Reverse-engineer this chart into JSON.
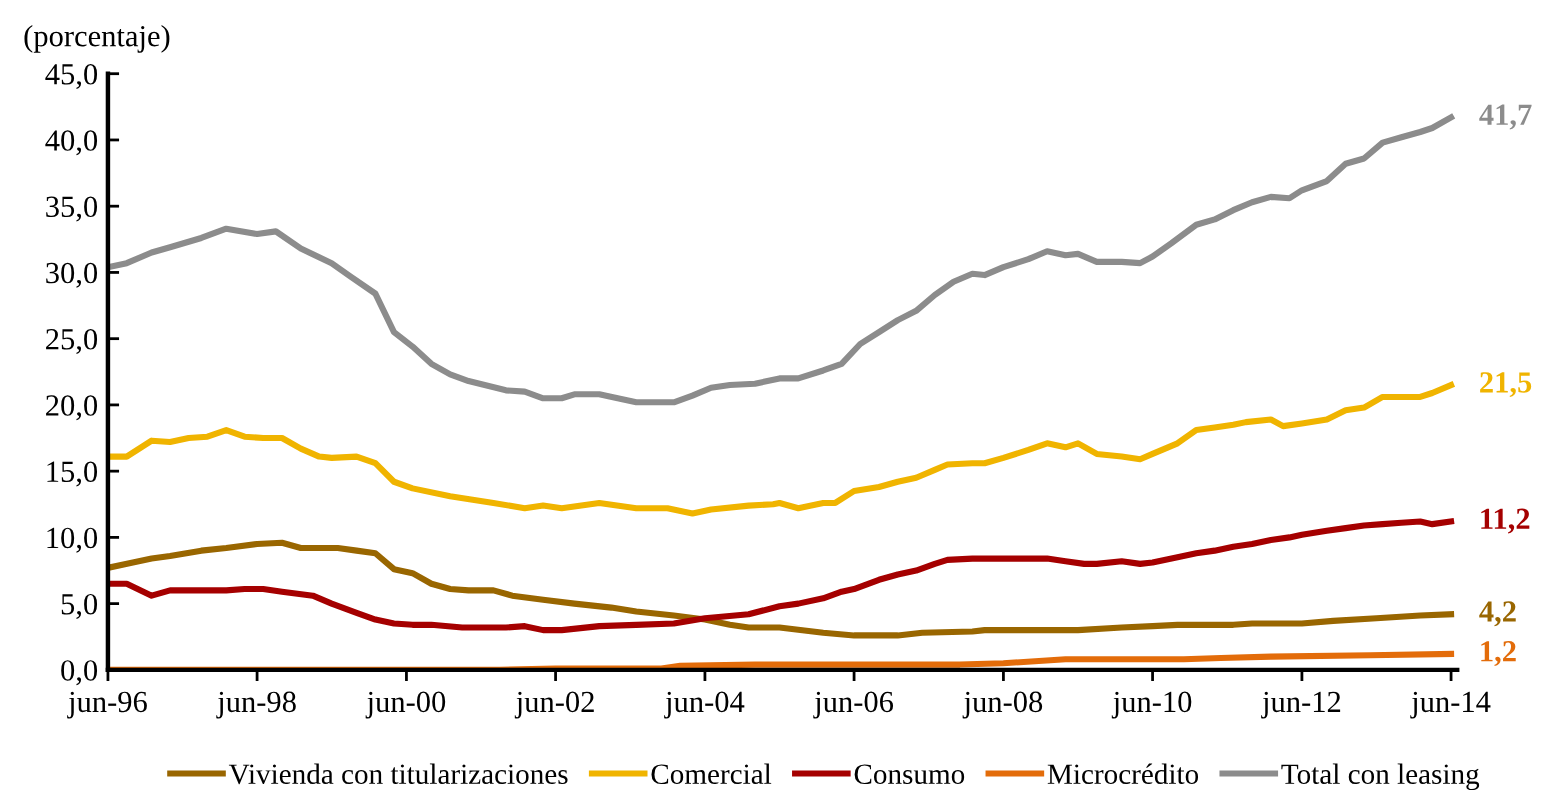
{
  "chart_data": {
    "type": "line",
    "ylabel": "(porcentaje)",
    "xlim": [
      "1996-06",
      "2014-07"
    ],
    "xticks": [
      {
        "value": "1996-06",
        "label": "jun-96"
      },
      {
        "value": "1998-06",
        "label": "jun-98"
      },
      {
        "value": "2000-06",
        "label": "jun-00"
      },
      {
        "value": "2002-06",
        "label": "jun-02"
      },
      {
        "value": "2004-06",
        "label": "jun-04"
      },
      {
        "value": "2006-06",
        "label": "jun-06"
      },
      {
        "value": "2008-06",
        "label": "jun-08"
      },
      {
        "value": "2010-06",
        "label": "jun-10"
      },
      {
        "value": "2012-06",
        "label": "jun-12"
      },
      {
        "value": "2014-06",
        "label": "jun-14"
      }
    ],
    "ylim": [
      0,
      45
    ],
    "yticks": [
      {
        "value": 0,
        "label": "0,0"
      },
      {
        "value": 5,
        "label": "5,0"
      },
      {
        "value": 10,
        "label": "10,0"
      },
      {
        "value": 15,
        "label": "15,0"
      },
      {
        "value": 20,
        "label": "20,0"
      },
      {
        "value": 25,
        "label": "25,0"
      },
      {
        "value": 30,
        "label": "30,0"
      },
      {
        "value": 35,
        "label": "35,0"
      },
      {
        "value": 40,
        "label": "40,0"
      },
      {
        "value": 45,
        "label": "45,0"
      }
    ],
    "legend": "bottom",
    "line_style": "solid",
    "series": [
      {
        "name": "Vivienda con titularizaciones",
        "color": "#996600",
        "x": [
          "1996-06",
          "1996-10",
          "1997-01",
          "1997-04",
          "1997-09",
          "1998-01",
          "1998-06",
          "1998-10",
          "1999-01",
          "1999-04",
          "1999-07",
          "1999-10",
          "2000-01",
          "2000-04",
          "2000-07",
          "2000-10",
          "2001-01",
          "2001-04",
          "2001-08",
          "2001-11",
          "2002-04",
          "2002-09",
          "2003-03",
          "2003-07",
          "2004-01",
          "2004-06",
          "2004-10",
          "2005-01",
          "2005-06",
          "2006-01",
          "2006-06",
          "2007-01",
          "2007-05",
          "2008-01",
          "2008-03",
          "2009-06",
          "2010-01",
          "2010-06",
          "2010-10",
          "2011-07",
          "2011-10",
          "2012-06",
          "2012-11",
          "2013-06",
          "2014-01",
          "2014-06"
        ],
        "values": [
          7.7,
          8.1,
          8.4,
          8.6,
          9.0,
          9.2,
          9.5,
          9.6,
          9.2,
          9.2,
          9.2,
          9.0,
          8.8,
          7.6,
          7.3,
          6.5,
          6.1,
          6.0,
          6.0,
          5.6,
          5.3,
          5.0,
          4.7,
          4.4,
          4.1,
          3.8,
          3.4,
          3.2,
          3.2,
          2.8,
          2.6,
          2.6,
          2.8,
          2.9,
          3.0,
          3.0,
          3.2,
          3.3,
          3.4,
          3.4,
          3.5,
          3.5,
          3.7,
          3.9,
          4.1,
          4.2
        ]
      },
      {
        "name": "Comercial",
        "color": "#f0b400",
        "x": [
          "1996-06",
          "1996-09",
          "1997-01",
          "1997-04",
          "1997-07",
          "1997-10",
          "1998-01",
          "1998-04",
          "1998-07",
          "1998-10",
          "1999-01",
          "1999-04",
          "1999-06",
          "1999-10",
          "2000-01",
          "2000-04",
          "2000-07",
          "2001-01",
          "2001-08",
          "2002-01",
          "2002-04",
          "2002-07",
          "2003-01",
          "2003-07",
          "2003-12",
          "2004-04",
          "2004-07",
          "2005-01",
          "2005-05",
          "2005-06",
          "2005-09",
          "2006-01",
          "2006-03",
          "2006-06",
          "2006-10",
          "2007-01",
          "2007-04",
          "2007-07",
          "2007-09",
          "2008-01",
          "2008-03",
          "2008-06",
          "2008-10",
          "2009-01",
          "2009-04",
          "2009-06",
          "2009-09",
          "2010-01",
          "2010-04",
          "2010-06",
          "2010-10",
          "2011-01",
          "2011-04",
          "2011-07",
          "2011-09",
          "2012-01",
          "2012-03",
          "2012-06",
          "2012-10",
          "2013-01",
          "2013-04",
          "2013-07",
          "2013-10",
          "2014-01",
          "2014-03",
          "2014-06"
        ],
        "values": [
          16.1,
          16.1,
          17.3,
          17.2,
          17.5,
          17.6,
          18.1,
          17.6,
          17.5,
          17.5,
          16.7,
          16.1,
          16.0,
          16.1,
          15.6,
          14.2,
          13.7,
          13.1,
          12.6,
          12.2,
          12.4,
          12.2,
          12.6,
          12.2,
          12.2,
          11.8,
          12.1,
          12.4,
          12.5,
          12.6,
          12.2,
          12.6,
          12.6,
          13.5,
          13.8,
          14.2,
          14.5,
          15.1,
          15.5,
          15.6,
          15.6,
          16.0,
          16.6,
          17.1,
          16.8,
          17.1,
          16.3,
          16.1,
          15.9,
          16.3,
          17.1,
          18.1,
          18.3,
          18.5,
          18.7,
          18.9,
          18.4,
          18.6,
          18.9,
          19.6,
          19.8,
          20.6,
          20.6,
          20.6,
          20.9,
          21.5
        ]
      },
      {
        "name": "Consumo",
        "color": "#a50000",
        "x": [
          "1996-06",
          "1996-09",
          "1997-01",
          "1997-04",
          "1998-01",
          "1998-04",
          "1998-07",
          "1998-10",
          "1999-03",
          "1999-06",
          "1999-10",
          "2000-01",
          "2000-04",
          "2000-07",
          "2000-10",
          "2001-03",
          "2001-10",
          "2002-01",
          "2002-04",
          "2002-07",
          "2003-01",
          "2003-07",
          "2004-01",
          "2004-06",
          "2005-01",
          "2005-06",
          "2005-09",
          "2006-01",
          "2006-04",
          "2006-06",
          "2006-10",
          "2007-01",
          "2007-04",
          "2007-07",
          "2007-09",
          "2008-01",
          "2008-03",
          "2008-06",
          "2008-10",
          "2009-01",
          "2009-04",
          "2009-07",
          "2009-09",
          "2010-01",
          "2010-04",
          "2010-06",
          "2010-10",
          "2011-01",
          "2011-04",
          "2011-07",
          "2011-10",
          "2012-01",
          "2012-04",
          "2012-06",
          "2012-10",
          "2013-01",
          "2013-04",
          "2013-07",
          "2013-10",
          "2014-01",
          "2014-03",
          "2014-06"
        ],
        "values": [
          6.5,
          6.5,
          5.6,
          6.0,
          6.0,
          6.1,
          6.1,
          5.9,
          5.6,
          5.0,
          4.3,
          3.8,
          3.5,
          3.4,
          3.4,
          3.2,
          3.2,
          3.3,
          3.0,
          3.0,
          3.3,
          3.4,
          3.5,
          3.9,
          4.2,
          4.8,
          5.0,
          5.4,
          5.9,
          6.1,
          6.8,
          7.2,
          7.5,
          8.0,
          8.3,
          8.4,
          8.4,
          8.4,
          8.4,
          8.4,
          8.2,
          8.0,
          8.0,
          8.2,
          8.0,
          8.1,
          8.5,
          8.8,
          9.0,
          9.3,
          9.5,
          9.8,
          10.0,
          10.2,
          10.5,
          10.7,
          10.9,
          11.0,
          11.1,
          11.2,
          11.0,
          11.2
        ]
      },
      {
        "name": "Microcrédito",
        "color": "#e36c0a",
        "x": [
          "1996-06",
          "2001-09",
          "2002-06",
          "2003-11",
          "2004-02",
          "2005-02",
          "2007-11",
          "2008-06",
          "2009-04",
          "2010-11",
          "2011-05",
          "2012-01",
          "2013-05",
          "2014-06"
        ],
        "values": [
          0,
          0,
          0.1,
          0.1,
          0.3,
          0.4,
          0.4,
          0.5,
          0.8,
          0.8,
          0.9,
          1.0,
          1.1,
          1.2
        ]
      },
      {
        "name": "Total con leasing",
        "color": "#8c8c8c",
        "x": [
          "1996-06",
          "1996-09",
          "1997-01",
          "1997-04",
          "1997-09",
          "1998-01",
          "1998-06",
          "1998-09",
          "1999-01",
          "1999-06",
          "1999-09",
          "2000-01",
          "2000-04",
          "2000-07",
          "2000-10",
          "2001-01",
          "2001-04",
          "2001-10",
          "2002-01",
          "2002-04",
          "2002-07",
          "2002-09",
          "2003-01",
          "2003-04",
          "2003-07",
          "2004-01",
          "2004-04",
          "2004-07",
          "2004-10",
          "2005-02",
          "2005-06",
          "2005-09",
          "2006-01",
          "2006-04",
          "2006-07",
          "2006-10",
          "2007-01",
          "2007-04",
          "2007-07",
          "2007-10",
          "2008-01",
          "2008-03",
          "2008-06",
          "2008-10",
          "2009-01",
          "2009-04",
          "2009-06",
          "2009-09",
          "2010-01",
          "2010-04",
          "2010-06",
          "2010-09",
          "2011-01",
          "2011-04",
          "2011-07",
          "2011-10",
          "2012-01",
          "2012-04",
          "2012-06",
          "2012-10",
          "2013-01",
          "2013-04",
          "2013-07",
          "2013-10",
          "2014-01",
          "2014-03",
          "2014-06"
        ],
        "values": [
          30.4,
          30.7,
          31.5,
          31.9,
          32.6,
          33.3,
          32.9,
          33.1,
          31.8,
          30.7,
          29.7,
          28.4,
          25.5,
          24.4,
          23.1,
          22.3,
          21.8,
          21.1,
          21.0,
          20.5,
          20.5,
          20.8,
          20.8,
          20.5,
          20.2,
          20.2,
          20.7,
          21.3,
          21.5,
          21.6,
          22.0,
          22.0,
          22.6,
          23.1,
          24.6,
          25.5,
          26.4,
          27.1,
          28.3,
          29.3,
          29.9,
          29.8,
          30.4,
          31.0,
          31.6,
          31.3,
          31.4,
          30.8,
          30.8,
          30.7,
          31.2,
          32.2,
          33.6,
          34.0,
          34.7,
          35.3,
          35.7,
          35.6,
          36.2,
          36.9,
          38.2,
          38.6,
          39.8,
          40.2,
          40.6,
          40.9,
          41.7
        ]
      }
    ],
    "annotations": [
      {
        "text": "41,7",
        "x": "2014-06",
        "y": 41.7
      },
      {
        "text": "21,5",
        "x": "2014-06",
        "y": 21.5
      },
      {
        "text": "11,2",
        "x": "2014-06",
        "y": 11.2
      },
      {
        "text": "4,2",
        "x": "2014-06",
        "y": 4.2
      },
      {
        "text": "1,2",
        "x": "2014-06",
        "y": 1.2
      }
    ]
  }
}
